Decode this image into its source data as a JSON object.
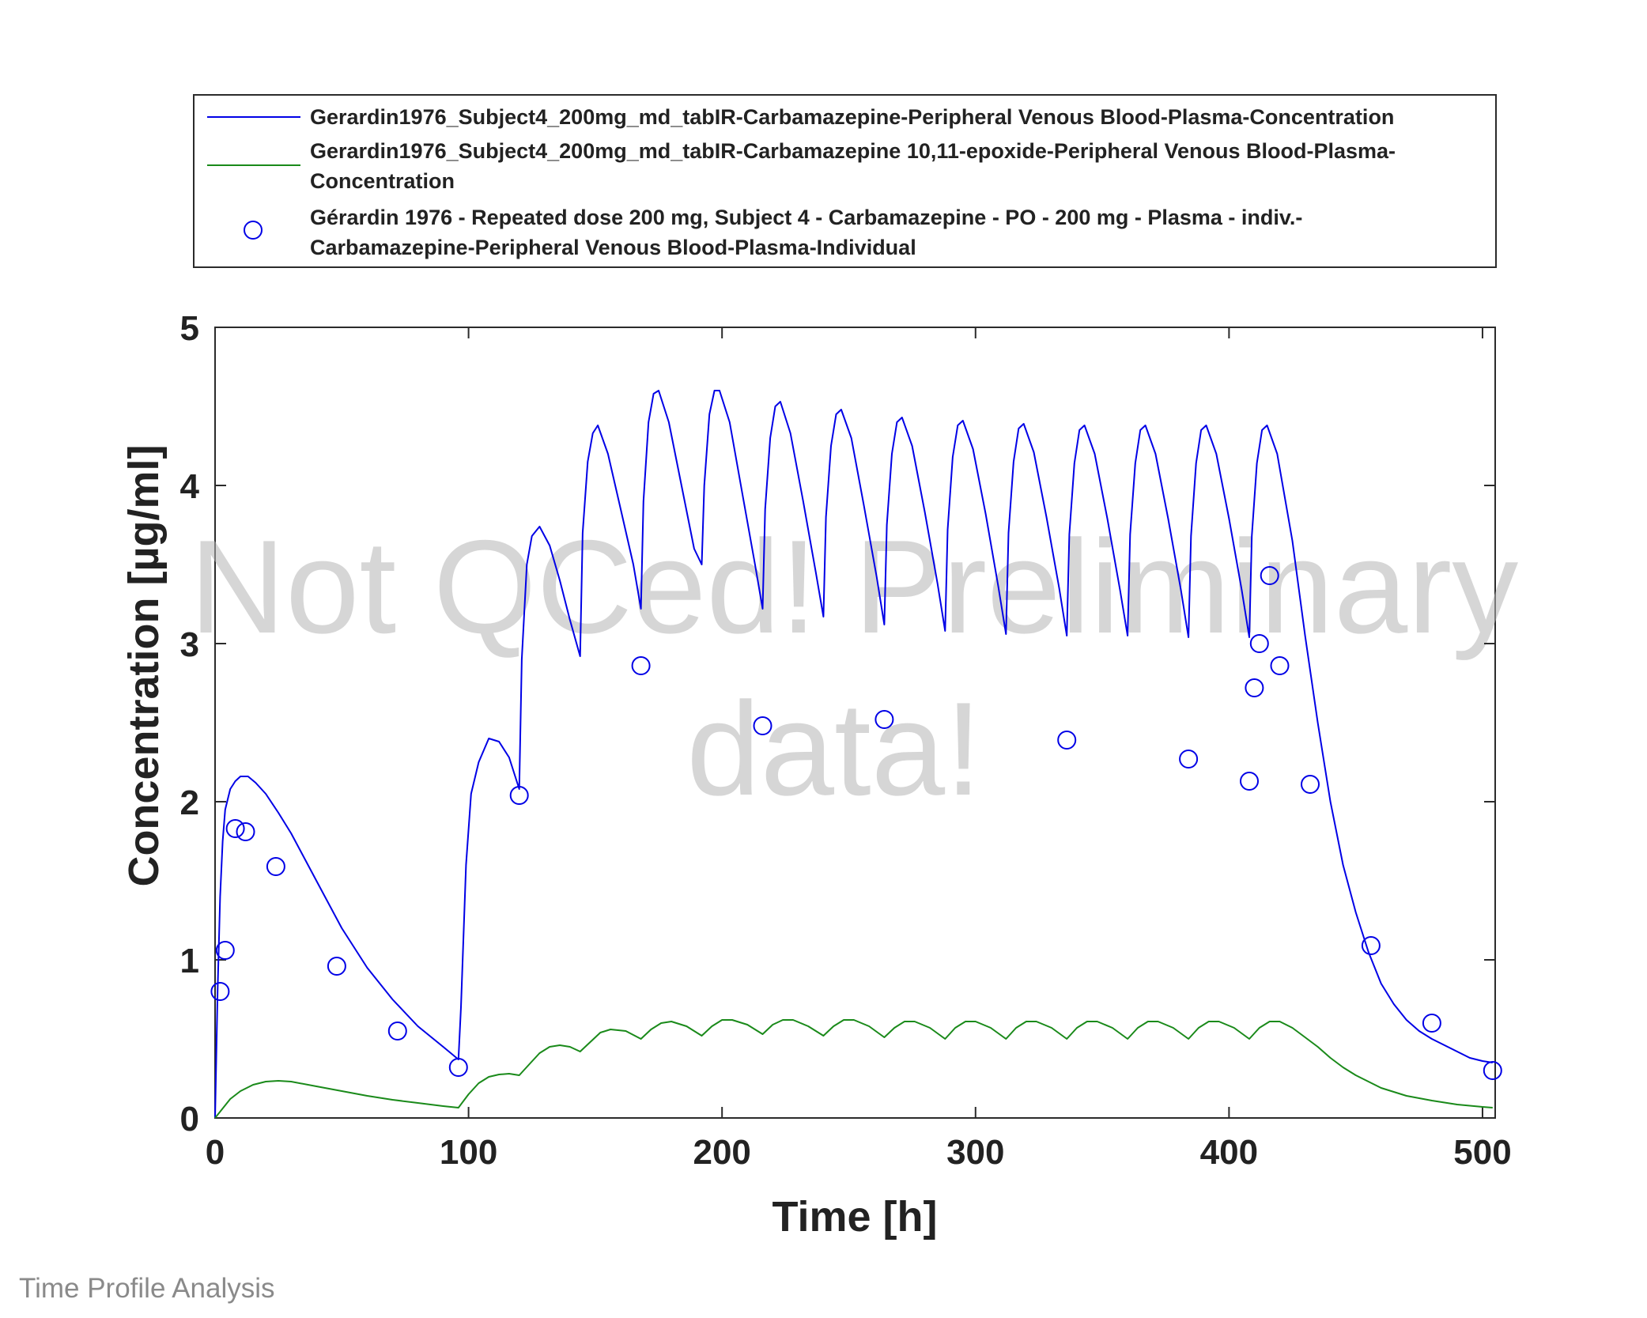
{
  "footer_label": "Time Profile Analysis",
  "watermark": {
    "line1": "Not QCed! Preliminary",
    "line2": "data!"
  },
  "legend": {
    "entries": [
      {
        "lines": [
          "Gerardin1976_Subject4_200mg_md_tabIR-Carbamazepine-Peripheral Venous Blood-Plasma-Concentration"
        ],
        "color": "#0000e6",
        "marker": "line"
      },
      {
        "lines": [
          "Gerardin1976_Subject4_200mg_md_tabIR-Carbamazepine 10,11-epoxide-Peripheral Venous Blood-Plasma-",
          "Concentration"
        ],
        "color": "#1a8a1a",
        "marker": "line"
      },
      {
        "lines": [
          "Gérardin 1976 - Repeated dose 200 mg, Subject 4 - Carbamazepine - PO - 200 mg - Plasma - indiv.-",
          "Carbamazepine-Peripheral Venous Blood-Plasma-Individual"
        ],
        "color": "#0000e6",
        "marker": "circle"
      }
    ]
  },
  "chart_data": {
    "type": "line",
    "xlabel": "Time [h]",
    "ylabel": "Concentration [µg/ml]",
    "xlim": [
      0,
      505
    ],
    "ylim": [
      0,
      5
    ],
    "xticks": [
      0,
      100,
      200,
      300,
      400,
      500
    ],
    "yticks": [
      0,
      1,
      2,
      3,
      4,
      5
    ],
    "grid": false,
    "legend_position": "top-outside",
    "series": [
      {
        "name": "Gerardin1976_Subject4_200mg_md_tabIR-Carbamazepine-Peripheral Venous Blood-Plasma-Concentration",
        "color": "#0000e6",
        "style": "line",
        "x": [
          0,
          1,
          2,
          3,
          4,
          6,
          8,
          10,
          13,
          16,
          20,
          25,
          30,
          40,
          50,
          60,
          70,
          80,
          90,
          96,
          97,
          99,
          101,
          104,
          108,
          112,
          116,
          120,
          121,
          123,
          125,
          128,
          132,
          136,
          140,
          144,
          145,
          147,
          149,
          151,
          155,
          160,
          165,
          168,
          169,
          171,
          173,
          175,
          179,
          184,
          189,
          192,
          193,
          195,
          197,
          199,
          203,
          208,
          213,
          216,
          217,
          219,
          221,
          223,
          227,
          232,
          237,
          240,
          241,
          243,
          245,
          247,
          251,
          256,
          261,
          264,
          265,
          267,
          269,
          271,
          275,
          280,
          285,
          288,
          289,
          291,
          293,
          295,
          299,
          304,
          309,
          312,
          313,
          315,
          317,
          319,
          323,
          328,
          333,
          336,
          337,
          339,
          341,
          343,
          347,
          352,
          357,
          360,
          361,
          363,
          365,
          367,
          371,
          376,
          381,
          384,
          385,
          387,
          389,
          391,
          395,
          400,
          405,
          408,
          409,
          411,
          413,
          415,
          419,
          425,
          430,
          435,
          440,
          445,
          450,
          455,
          460,
          465,
          470,
          475,
          480,
          485,
          490,
          495,
          500,
          504
        ],
        "y": [
          0,
          0.8,
          1.4,
          1.75,
          1.95,
          2.08,
          2.13,
          2.16,
          2.16,
          2.12,
          2.05,
          1.93,
          1.8,
          1.5,
          1.2,
          0.95,
          0.75,
          0.58,
          0.45,
          0.37,
          0.7,
          1.6,
          2.05,
          2.25,
          2.4,
          2.38,
          2.28,
          2.08,
          2.9,
          3.5,
          3.68,
          3.74,
          3.62,
          3.4,
          3.15,
          2.92,
          3.7,
          4.15,
          4.33,
          4.38,
          4.2,
          3.85,
          3.5,
          3.22,
          3.9,
          4.4,
          4.58,
          4.6,
          4.4,
          4.0,
          3.6,
          3.5,
          4.0,
          4.45,
          4.6,
          4.6,
          4.4,
          3.95,
          3.5,
          3.22,
          3.85,
          4.3,
          4.5,
          4.53,
          4.33,
          3.9,
          3.45,
          3.17,
          3.8,
          4.25,
          4.45,
          4.48,
          4.3,
          3.87,
          3.42,
          3.12,
          3.75,
          4.2,
          4.4,
          4.43,
          4.25,
          3.83,
          3.38,
          3.08,
          3.72,
          4.18,
          4.38,
          4.41,
          4.23,
          3.82,
          3.36,
          3.06,
          3.7,
          4.15,
          4.36,
          4.39,
          4.21,
          3.8,
          3.35,
          3.05,
          3.69,
          4.14,
          4.35,
          4.38,
          4.2,
          3.79,
          3.34,
          3.05,
          3.69,
          4.14,
          4.35,
          4.38,
          4.2,
          3.79,
          3.34,
          3.04,
          3.68,
          4.14,
          4.35,
          4.38,
          4.2,
          3.79,
          3.34,
          3.04,
          3.68,
          4.14,
          4.35,
          4.38,
          4.2,
          3.65,
          3.05,
          2.5,
          2.0,
          1.6,
          1.3,
          1.05,
          0.85,
          0.72,
          0.62,
          0.55,
          0.5,
          0.46,
          0.42,
          0.38,
          0.36,
          0.35
        ]
      },
      {
        "name": "Gerardin1976_Subject4_200mg_md_tabIR-Carbamazepine 10,11-epoxide-Peripheral Venous Blood-Plasma-Concentration",
        "color": "#1a8a1a",
        "style": "line",
        "x": [
          0,
          3,
          6,
          10,
          15,
          20,
          25,
          30,
          40,
          50,
          60,
          70,
          80,
          90,
          96,
          100,
          104,
          108,
          112,
          116,
          120,
          124,
          128,
          132,
          136,
          140,
          144,
          148,
          152,
          156,
          162,
          168,
          172,
          176,
          180,
          186,
          192,
          196,
          200,
          204,
          210,
          216,
          220,
          224,
          228,
          234,
          240,
          244,
          248,
          252,
          258,
          264,
          268,
          272,
          276,
          282,
          288,
          292,
          296,
          300,
          306,
          312,
          316,
          320,
          324,
          330,
          336,
          340,
          344,
          348,
          354,
          360,
          364,
          368,
          372,
          378,
          384,
          388,
          392,
          396,
          402,
          408,
          412,
          416,
          420,
          425,
          430,
          435,
          440,
          445,
          450,
          455,
          460,
          470,
          480,
          490,
          500,
          504
        ],
        "y": [
          0,
          0.06,
          0.12,
          0.17,
          0.21,
          0.23,
          0.235,
          0.23,
          0.2,
          0.17,
          0.14,
          0.115,
          0.095,
          0.075,
          0.065,
          0.15,
          0.22,
          0.26,
          0.275,
          0.28,
          0.27,
          0.34,
          0.41,
          0.45,
          0.46,
          0.45,
          0.42,
          0.48,
          0.54,
          0.56,
          0.55,
          0.5,
          0.56,
          0.6,
          0.61,
          0.58,
          0.52,
          0.58,
          0.62,
          0.62,
          0.59,
          0.53,
          0.59,
          0.62,
          0.62,
          0.58,
          0.52,
          0.58,
          0.62,
          0.62,
          0.58,
          0.51,
          0.57,
          0.61,
          0.61,
          0.57,
          0.5,
          0.57,
          0.61,
          0.61,
          0.57,
          0.5,
          0.57,
          0.61,
          0.61,
          0.57,
          0.5,
          0.57,
          0.61,
          0.61,
          0.57,
          0.5,
          0.57,
          0.61,
          0.61,
          0.57,
          0.5,
          0.57,
          0.61,
          0.61,
          0.57,
          0.5,
          0.57,
          0.61,
          0.61,
          0.57,
          0.51,
          0.45,
          0.38,
          0.32,
          0.27,
          0.23,
          0.19,
          0.14,
          0.11,
          0.085,
          0.07,
          0.065
        ]
      },
      {
        "name": "Gérardin 1976 - Repeated dose 200 mg, Subject 4 - Carbamazepine - PO - 200 mg - Plasma - indiv.-Carbamazepine-Peripheral Venous Blood-Plasma-Individual",
        "color": "#0000e6",
        "style": "marker-circle",
        "x": [
          2,
          4,
          8,
          12,
          24,
          48,
          72,
          96,
          120,
          168,
          216,
          264,
          336,
          384,
          408,
          410,
          412,
          416,
          420,
          432,
          456,
          480,
          504
        ],
        "y": [
          0.8,
          1.06,
          1.83,
          1.81,
          1.59,
          0.96,
          0.55,
          0.32,
          2.04,
          2.86,
          2.48,
          2.52,
          2.39,
          2.27,
          2.13,
          2.72,
          3.0,
          3.43,
          2.86,
          2.11,
          1.09,
          0.6,
          0.3
        ]
      }
    ]
  }
}
